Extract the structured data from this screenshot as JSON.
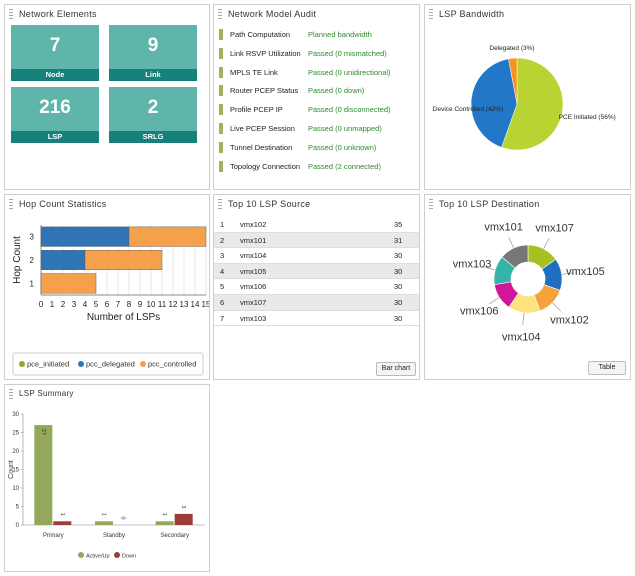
{
  "network_elements": {
    "title": "Network Elements",
    "tiles": [
      {
        "value": 7,
        "label": "Node"
      },
      {
        "value": 9,
        "label": "Link"
      },
      {
        "value": 216,
        "label": "LSP"
      },
      {
        "value": 2,
        "label": "SRLG"
      }
    ]
  },
  "audit": {
    "title": "Network Model Audit",
    "rows": [
      [
        "Path Computation",
        "Planned bandwidth"
      ],
      [
        "Link RSVP Utilization",
        "Passed (0 mismatched)"
      ],
      [
        "MPLS TE Link",
        "Passed (0 unidirectional)"
      ],
      [
        "Router PCEP Status",
        "Passed (0 down)"
      ],
      [
        "Profile PCEP IP",
        "Passed (0 disconnected)"
      ],
      [
        "Live PCEP Session",
        "Passed (0 unmapped)"
      ],
      [
        "Tunnel Destination",
        "Passed (0 unknown)"
      ],
      [
        "Topology Connection",
        "Passed (2 connected)"
      ]
    ]
  },
  "lsp_source": {
    "title": "Top 10 LSP Source",
    "rows": [
      [
        1,
        "vmx102",
        35
      ],
      [
        2,
        "vmx101",
        31
      ],
      [
        3,
        "vmx104",
        30
      ],
      [
        4,
        "vmx105",
        30
      ],
      [
        5,
        "vmx106",
        30
      ],
      [
        6,
        "vmx107",
        30
      ],
      [
        7,
        "vmx103",
        30
      ]
    ],
    "button": "Bar chart"
  },
  "chart_data": [
    {
      "type": "pie",
      "title": "LSP Bandwidth",
      "values": [
        3,
        42,
        56
      ],
      "value_labels": [
        "Delegated (3%)",
        "Device Controlled (42%)",
        "PCE Initiated (56%)"
      ],
      "colors": [
        "#f7941d",
        "#2277c9",
        "#b8d432"
      ]
    },
    {
      "type": "bar",
      "orientation": "horizontal",
      "stacked": true,
      "title": "Hop Count Statistics",
      "xlabel": "Number of LSPs",
      "ylabel": "Hop Count",
      "categories": [
        "1",
        "2",
        "3"
      ],
      "series": [
        {
          "name": "pce_initiated",
          "color": "#8aa832",
          "values": [
            0,
            0,
            0
          ]
        },
        {
          "name": "pcc_delegated",
          "color": "#2f75b5",
          "values": [
            0,
            4,
            8
          ]
        },
        {
          "name": "pcc_controlled",
          "color": "#f5a04a",
          "values": [
            5,
            7,
            7
          ]
        }
      ],
      "xlim": [
        0,
        15
      ],
      "xticks": [
        0,
        1,
        2,
        3,
        4,
        5,
        6,
        7,
        8,
        9,
        10,
        11,
        12,
        13,
        14,
        15
      ],
      "grid": true,
      "legend": "bottom"
    },
    {
      "type": "donut",
      "title": "Top 10 LSP Destination",
      "categories": [
        "vmx107",
        "vmx105",
        "vmx102",
        "vmx104",
        "vmx106",
        "vmx103",
        "vmx101"
      ],
      "values": [
        33,
        33,
        30,
        33,
        28,
        30,
        30
      ],
      "colors": [
        "#a8c022",
        "#1f6fc0",
        "#f7a13a",
        "#fde27e",
        "#d0169a",
        "#35b5a8",
        "#777777"
      ],
      "button": "Table"
    },
    {
      "type": "bar",
      "title": "LSP Summary",
      "ylabel": "Count",
      "categories": [
        "Primary",
        "Standby",
        "Secondary"
      ],
      "series": [
        {
          "name": "Active/Up",
          "color": "#93a85a",
          "values": [
            27,
            1,
            1
          ]
        },
        {
          "name": "Down",
          "color": "#9a3d3b",
          "values": [
            1,
            0,
            3
          ]
        }
      ],
      "ylim": [
        0,
        30
      ],
      "yticks": [
        0,
        5,
        10,
        15,
        20,
        25,
        30
      ],
      "legend": "bottom",
      "data_labels": true
    }
  ]
}
